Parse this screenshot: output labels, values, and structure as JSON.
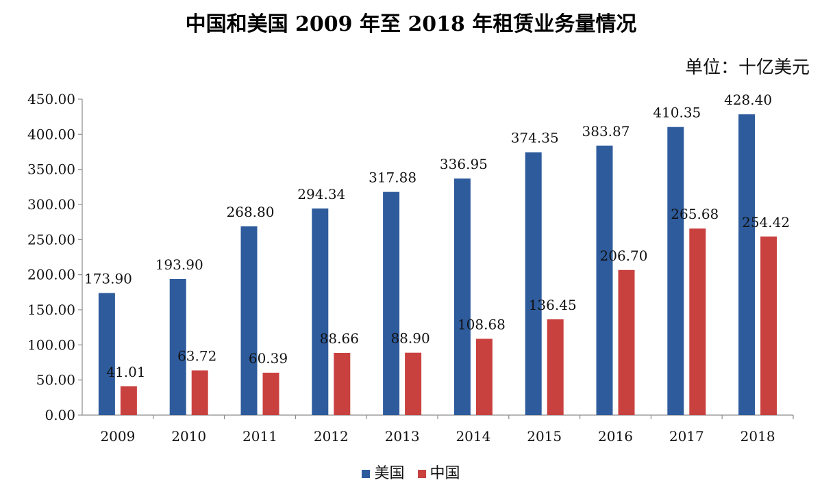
{
  "chart_data": {
    "type": "bar",
    "title": "中国和美国 2009 年至 2018 年租赁业务量情况",
    "unit": "单位：十亿美元",
    "categories": [
      "2009",
      "2010",
      "2011",
      "2012",
      "2013",
      "2014",
      "2015",
      "2016",
      "2017",
      "2018"
    ],
    "series": [
      {
        "name": "美国",
        "color": "#2e5b9c",
        "values": [
          173.9,
          193.9,
          268.8,
          294.34,
          317.88,
          336.95,
          374.35,
          383.87,
          410.35,
          428.4
        ],
        "labels": [
          "173.90",
          "193.90",
          "268.80",
          "294.34",
          "317.88",
          "336.95",
          "374.35",
          "383.87",
          "410.35",
          "428.40"
        ]
      },
      {
        "name": "中国",
        "color": "#c9413f",
        "values": [
          41.01,
          63.72,
          60.39,
          88.66,
          88.9,
          108.68,
          136.45,
          206.7,
          265.68,
          254.42
        ],
        "labels": [
          "41.01",
          "63.72",
          "60.39",
          "88.66",
          "88.90",
          "108.68",
          "136.45",
          "206.70",
          "265.68",
          "254.42"
        ]
      }
    ],
    "ylim": [
      0,
      450
    ],
    "yticks": [
      "0.00",
      "50.00",
      "100.00",
      "150.00",
      "200.00",
      "250.00",
      "300.00",
      "350.00",
      "400.00",
      "450.00"
    ],
    "ytick_values": [
      0,
      50,
      100,
      150,
      200,
      250,
      300,
      350,
      400,
      450
    ],
    "grid": false,
    "legend_position": "bottom"
  }
}
